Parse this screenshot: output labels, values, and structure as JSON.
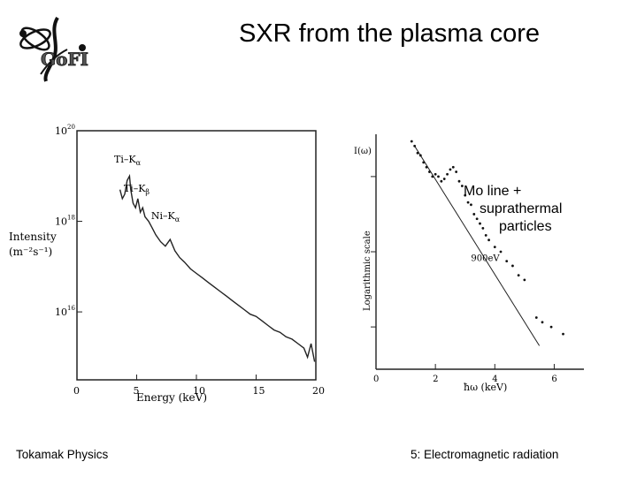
{
  "slide": {
    "title": "SXR from the plasma core",
    "footer_left": "Tokamak Physics",
    "footer_right": "5: Electromagnetic radiation"
  },
  "logo": {
    "text": "GoFI"
  },
  "annotation": {
    "lines": [
      "Mo line +",
      "suprathermal",
      "particles"
    ]
  },
  "colors": {
    "text": "#000000",
    "background": "#ffffff",
    "plot_ink": "#222222"
  },
  "chart_data": [
    {
      "type": "line",
      "title": "",
      "xlabel": "Energy (keV)",
      "ylabel": "Intensity (m⁻²s⁻¹)",
      "xlim": [
        0,
        20
      ],
      "ylim_log10": [
        14.5,
        20
      ],
      "y_scale": "log",
      "x_ticks": [
        0,
        5,
        10,
        15,
        20
      ],
      "y_ticks": [
        {
          "exp": 20,
          "label": "10"
        },
        {
          "exp": 18,
          "label": "10"
        },
        {
          "exp": 16,
          "label": "10"
        }
      ],
      "grid": false,
      "series": [
        {
          "x": [
            3.6,
            3.8,
            4.0,
            4.2,
            4.4,
            4.5,
            4.7,
            4.9,
            5.1,
            5.3,
            5.5,
            5.7,
            6.0,
            6.3,
            6.6,
            7.0,
            7.4,
            7.8,
            8.2,
            8.6,
            9.0,
            9.5,
            10.0,
            10.5,
            11.0,
            11.5,
            12.0,
            12.5,
            13.0,
            13.5,
            14.0,
            14.5,
            15.0,
            15.5,
            16.0,
            16.5,
            17.0,
            17.5,
            18.0,
            18.5,
            19.0,
            19.3,
            19.6,
            19.9
          ],
          "y_log10": [
            18.7,
            18.5,
            18.6,
            18.9,
            19.0,
            18.7,
            18.4,
            18.3,
            18.5,
            18.2,
            18.3,
            18.1,
            18.0,
            17.85,
            17.7,
            17.55,
            17.45,
            17.6,
            17.35,
            17.2,
            17.1,
            16.95,
            16.85,
            16.75,
            16.65,
            16.55,
            16.45,
            16.35,
            16.25,
            16.15,
            16.05,
            15.95,
            15.9,
            15.8,
            15.7,
            15.6,
            15.55,
            15.45,
            15.4,
            15.3,
            15.2,
            15.0,
            15.3,
            14.9
          ]
        }
      ],
      "annotations": [
        {
          "text": "Ti–K",
          "sub": "α",
          "x": 4.3,
          "y_log10": 19.3
        },
        {
          "text": "Ti–K",
          "sub": "β",
          "x": 5.1,
          "y_log10": 18.65
        },
        {
          "text": "Ni–K",
          "sub": "α",
          "x": 7.4,
          "y_log10": 18.05
        }
      ]
    },
    {
      "type": "scatter",
      "title": "",
      "xlabel": "ħω       (keV)",
      "ylabel": "Logarithmic scale",
      "y_axis_title": "I(ω)",
      "xlim": [
        0,
        7
      ],
      "x_ticks": [
        0,
        2,
        4,
        6
      ],
      "y_scale": "log",
      "grid": false,
      "series": [
        {
          "name": "",
          "x": [
            1.2,
            1.3,
            1.4,
            1.5,
            1.6,
            1.7,
            1.8,
            1.9,
            2.0,
            2.1,
            2.2,
            2.3,
            2.4,
            2.5,
            2.6,
            2.7,
            2.8,
            2.9,
            3.0,
            3.1,
            3.2,
            3.3,
            3.4,
            3.5,
            3.6,
            3.7,
            3.8,
            4.0,
            4.2,
            4.4,
            4.6,
            4.8,
            5.0,
            5.4,
            5.6,
            5.9,
            6.3
          ],
          "y": [
            0.97,
            0.95,
            0.92,
            0.91,
            0.88,
            0.86,
            0.84,
            0.82,
            0.83,
            0.82,
            0.8,
            0.81,
            0.83,
            0.85,
            0.86,
            0.84,
            0.8,
            0.78,
            0.74,
            0.71,
            0.7,
            0.66,
            0.64,
            0.62,
            0.6,
            0.57,
            0.55,
            0.52,
            0.5,
            0.46,
            0.44,
            0.4,
            0.38,
            0.22,
            0.2,
            0.18,
            0.15
          ]
        }
      ],
      "fit_line": {
        "label": "900eV",
        "x": [
          1.3,
          5.5
        ],
        "y": [
          0.95,
          0.1
        ]
      }
    }
  ]
}
